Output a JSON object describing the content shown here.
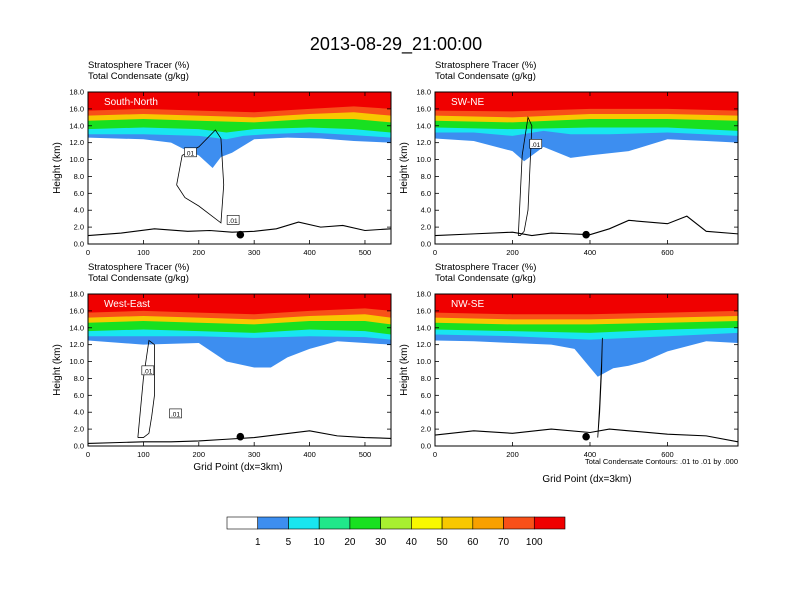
{
  "figure": {
    "title": "2013-08-29_21:00:00",
    "xlabel": "Grid Point (dx=3km)",
    "ylabel": "Height (km)",
    "footnote": "Total Condensate Contours: .01 to .01 by .000"
  },
  "colorbar": {
    "colors": [
      "#ffffff",
      "#3d8ef0",
      "#18e6f0",
      "#20e88a",
      "#18e020",
      "#a8f030",
      "#f8f800",
      "#f8c800",
      "#f8a000",
      "#f85018",
      "#f00000"
    ],
    "labels": [
      "1",
      "5",
      "10",
      "20",
      "30",
      "40",
      "50",
      "60",
      "70",
      "100"
    ]
  },
  "chart_data": [
    {
      "type": "contour",
      "panel": "South-North",
      "title_lines": [
        "Stratosphere Tracer   (%)",
        "Total Condensate   (g/kg)"
      ],
      "xlim": [
        0,
        547
      ],
      "ylim": [
        0,
        18
      ],
      "xticks": [
        0,
        100,
        200,
        300,
        400,
        500
      ],
      "yticks": [
        "0.0",
        "2.0",
        "4.0",
        "6.0",
        "8.0",
        "10.0",
        "12.0",
        "14.0",
        "16.0",
        "18.0"
      ],
      "series": [
        {
          "name": "Tracer 1%",
          "color": "#3d8ef0",
          "x": [
            0,
            100,
            150,
            180,
            200,
            225,
            240,
            260,
            300,
            360,
            420,
            480,
            547
          ],
          "y": [
            12.6,
            12.4,
            12.0,
            11.0,
            10.5,
            9.0,
            10.3,
            10.8,
            12.4,
            12.6,
            12.5,
            12.2,
            12.0
          ]
        },
        {
          "name": "Tracer 10%",
          "color": "#18e6f0",
          "x": [
            0,
            100,
            200,
            250,
            280,
            320,
            400,
            480,
            547
          ],
          "y": [
            13.0,
            13.0,
            12.8,
            12.4,
            12.8,
            13.0,
            13.2,
            12.9,
            12.6
          ]
        },
        {
          "name": "Tracer 30%",
          "color": "#18e020",
          "x": [
            0,
            100,
            200,
            250,
            300,
            400,
            480,
            547
          ],
          "y": [
            13.6,
            13.8,
            13.6,
            13.2,
            13.6,
            13.8,
            13.6,
            13.2
          ]
        },
        {
          "name": "Tracer 60%",
          "color": "#f8c800",
          "x": [
            0,
            100,
            200,
            300,
            400,
            480,
            547
          ],
          "y": [
            14.6,
            14.8,
            14.6,
            14.4,
            14.8,
            14.8,
            14.4
          ]
        },
        {
          "name": "Tracer 70%",
          "color": "#f85018",
          "x": [
            0,
            100,
            200,
            300,
            400,
            480,
            547
          ],
          "y": [
            15.2,
            15.4,
            15.2,
            15.0,
            15.4,
            15.6,
            15.2
          ]
        },
        {
          "name": "Tracer 100%",
          "color": "#f00000",
          "x": [
            0,
            100,
            200,
            300,
            400,
            480,
            547
          ],
          "y": [
            15.8,
            16.0,
            15.8,
            15.6,
            16.0,
            16.3,
            16.0
          ]
        },
        {
          "name": "Terrain",
          "color": "#000000",
          "x": [
            0,
            60,
            120,
            180,
            220,
            260,
            300,
            340,
            380,
            420,
            460,
            500,
            547
          ],
          "y": [
            1.0,
            1.3,
            1.8,
            1.5,
            1.6,
            1.4,
            1.5,
            1.8,
            2.6,
            2.0,
            2.2,
            1.6,
            1.8
          ]
        },
        {
          "name": "Condensate 0.01",
          "color": "#000000",
          "x": [
            160,
            170,
            200,
            230,
            240,
            245,
            240,
            220,
            200,
            175,
            160
          ],
          "y": [
            7.0,
            10.5,
            11.5,
            13.5,
            12.5,
            7.0,
            2.5,
            3.5,
            4.5,
            5.5,
            7.0
          ]
        }
      ],
      "labels": [
        {
          "text": "01",
          "x": 185,
          "y": 10.8
        },
        {
          "text": ".01",
          "x": 262,
          "y": 2.8
        }
      ],
      "marker": {
        "x": 275,
        "y": 1.1
      }
    },
    {
      "type": "contour",
      "panel": "SW-NE",
      "title_lines": [
        "Stratosphere Tracer   (%)",
        "Total Condensate   (g/kg)"
      ],
      "xlim": [
        0,
        782
      ],
      "ylim": [
        0,
        18
      ],
      "xticks": [
        0,
        200,
        400,
        600
      ],
      "yticks": [
        "0.0",
        "2.0",
        "4.0",
        "6.0",
        "8.0",
        "10.0",
        "12.0",
        "14.0",
        "16.0",
        "18.0"
      ],
      "series": [
        {
          "name": "Tracer 1%",
          "color": "#3d8ef0",
          "x": [
            0,
            100,
            200,
            230,
            280,
            350,
            400,
            500,
            600,
            700,
            782
          ],
          "y": [
            12.5,
            12.2,
            11.0,
            9.8,
            11.5,
            10.2,
            10.5,
            11.0,
            12.4,
            12.2,
            12.0
          ]
        },
        {
          "name": "Tracer 10%",
          "color": "#18e6f0",
          "x": [
            0,
            100,
            200,
            280,
            350,
            450,
            600,
            782
          ],
          "y": [
            13.2,
            13.2,
            12.8,
            13.4,
            13.0,
            13.0,
            13.2,
            12.8
          ]
        },
        {
          "name": "Tracer 30%",
          "color": "#18e020",
          "x": [
            0,
            200,
            400,
            600,
            782
          ],
          "y": [
            13.8,
            13.6,
            13.8,
            13.8,
            13.4
          ]
        },
        {
          "name": "Tracer 60%",
          "color": "#f8c800",
          "x": [
            0,
            200,
            400,
            600,
            782
          ],
          "y": [
            14.6,
            14.4,
            14.8,
            14.8,
            14.6
          ]
        },
        {
          "name": "Tracer 70%",
          "color": "#f85018",
          "x": [
            0,
            200,
            400,
            600,
            782
          ],
          "y": [
            15.2,
            15.0,
            15.4,
            15.4,
            15.2
          ]
        },
        {
          "name": "Tracer 100%",
          "color": "#f00000",
          "x": [
            0,
            200,
            400,
            600,
            782
          ],
          "y": [
            15.8,
            15.7,
            16.0,
            16.0,
            15.8
          ]
        },
        {
          "name": "Terrain",
          "color": "#000000",
          "x": [
            0,
            100,
            200,
            250,
            300,
            350,
            400,
            450,
            500,
            600,
            650,
            700,
            782
          ],
          "y": [
            1.0,
            1.2,
            1.4,
            1.0,
            1.3,
            1.2,
            1.1,
            1.8,
            2.8,
            2.4,
            3.3,
            1.5,
            1.2
          ]
        },
        {
          "name": "Condensate 0.01",
          "color": "#000000",
          "x": [
            215,
            225,
            240,
            250,
            245,
            240,
            230,
            220,
            215
          ],
          "y": [
            1.0,
            10.5,
            15.0,
            14.0,
            9.0,
            4.0,
            1.5,
            1.0,
            1.0
          ]
        }
      ],
      "labels": [
        {
          "text": ".01",
          "x": 260,
          "y": 11.8
        }
      ],
      "marker": {
        "x": 390,
        "y": 1.1
      }
    },
    {
      "type": "contour",
      "panel": "West-East",
      "title_lines": [
        "Stratosphere Tracer   (%)",
        "Total Condensate   (g/kg)"
      ],
      "xlim": [
        0,
        547
      ],
      "ylim": [
        0,
        18
      ],
      "xticks": [
        0,
        100,
        200,
        300,
        400,
        500
      ],
      "yticks": [
        "0.0",
        "2.0",
        "4.0",
        "6.0",
        "8.0",
        "10.0",
        "12.0",
        "14.0",
        "16.0",
        "18.0"
      ],
      "series": [
        {
          "name": "Tracer 1%",
          "color": "#3d8ef0",
          "x": [
            0,
            100,
            200,
            250,
            300,
            330,
            360,
            400,
            450,
            500,
            547
          ],
          "y": [
            12.5,
            12.0,
            12.2,
            10.0,
            9.3,
            9.3,
            10.5,
            11.5,
            12.4,
            12.2,
            12.0
          ]
        },
        {
          "name": "Tracer 10%",
          "color": "#18e6f0",
          "x": [
            0,
            100,
            200,
            300,
            400,
            500,
            547
          ],
          "y": [
            13.0,
            13.0,
            13.0,
            12.8,
            13.0,
            12.9,
            12.6
          ]
        },
        {
          "name": "Tracer 30%",
          "color": "#18e020",
          "x": [
            0,
            100,
            200,
            300,
            400,
            500,
            547
          ],
          "y": [
            13.6,
            13.8,
            13.6,
            13.4,
            13.8,
            13.6,
            13.2
          ]
        },
        {
          "name": "Tracer 60%",
          "color": "#f8c800",
          "x": [
            0,
            100,
            200,
            300,
            400,
            500,
            547
          ],
          "y": [
            14.6,
            14.8,
            14.6,
            14.4,
            14.8,
            14.8,
            14.4
          ]
        },
        {
          "name": "Tracer 70%",
          "color": "#f85018",
          "x": [
            0,
            100,
            200,
            300,
            400,
            500,
            547
          ],
          "y": [
            15.2,
            15.4,
            15.2,
            15.0,
            15.4,
            15.6,
            15.2
          ]
        },
        {
          "name": "Tracer 100%",
          "color": "#f00000",
          "x": [
            0,
            100,
            200,
            300,
            400,
            500,
            547
          ],
          "y": [
            15.8,
            16.0,
            15.8,
            15.6,
            16.0,
            16.3,
            16.0
          ]
        },
        {
          "name": "Terrain",
          "color": "#000000",
          "x": [
            0,
            50,
            100,
            150,
            200,
            250,
            300,
            350,
            400,
            450,
            500,
            547
          ],
          "y": [
            0.3,
            0.4,
            0.5,
            0.5,
            0.6,
            0.8,
            1.0,
            1.4,
            1.8,
            1.2,
            1.0,
            0.9
          ]
        },
        {
          "name": "Condensate 0.01",
          "color": "#000000",
          "x": [
            90,
            100,
            110,
            120,
            120,
            115,
            110,
            100,
            90
          ],
          "y": [
            1.0,
            8.0,
            12.5,
            12.0,
            6.0,
            3.5,
            1.5,
            1.0,
            1.0
          ]
        }
      ],
      "labels": [
        {
          "text": ".01",
          "x": 108,
          "y": 8.9
        },
        {
          "text": ".01",
          "x": 158,
          "y": 3.8
        }
      ],
      "marker": {
        "x": 275,
        "y": 1.1
      }
    },
    {
      "type": "contour",
      "panel": "NW-SE",
      "title_lines": [
        "Stratosphere Tracer   (%)",
        "Total Condensate   (g/kg)"
      ],
      "xlim": [
        0,
        782
      ],
      "ylim": [
        0,
        18
      ],
      "xticks": [
        0,
        200,
        400,
        600
      ],
      "yticks": [
        "0.0",
        "2.0",
        "4.0",
        "6.0",
        "8.0",
        "10.0",
        "12.0",
        "14.0",
        "16.0",
        "18.0"
      ],
      "series": [
        {
          "name": "Tracer 1%",
          "color": "#3d8ef0",
          "x": [
            0,
            100,
            200,
            300,
            360,
            400,
            420,
            460,
            500,
            540,
            600,
            700,
            782
          ],
          "y": [
            12.5,
            12.4,
            12.2,
            12.0,
            11.5,
            9.3,
            8.2,
            9.2,
            9.5,
            10.0,
            11.2,
            12.4,
            12.2
          ]
        },
        {
          "name": "Tracer 10%",
          "color": "#18e6f0",
          "x": [
            0,
            200,
            400,
            600,
            782
          ],
          "y": [
            13.2,
            13.0,
            12.6,
            13.0,
            13.4
          ]
        },
        {
          "name": "Tracer 30%",
          "color": "#18e020",
          "x": [
            0,
            200,
            400,
            600,
            782
          ],
          "y": [
            13.8,
            13.6,
            13.4,
            13.8,
            14.0
          ]
        },
        {
          "name": "Tracer 60%",
          "color": "#f8c800",
          "x": [
            0,
            200,
            400,
            600,
            782
          ],
          "y": [
            14.6,
            14.4,
            14.4,
            14.6,
            14.8
          ]
        },
        {
          "name": "Tracer 70%",
          "color": "#f85018",
          "x": [
            0,
            200,
            400,
            600,
            782
          ],
          "y": [
            15.2,
            15.0,
            15.0,
            15.2,
            15.4
          ]
        },
        {
          "name": "Tracer 100%",
          "color": "#f00000",
          "x": [
            0,
            200,
            400,
            600,
            782
          ],
          "y": [
            15.8,
            15.6,
            15.6,
            15.8,
            16.0
          ]
        },
        {
          "name": "Terrain",
          "color": "#000000",
          "x": [
            0,
            100,
            200,
            300,
            400,
            450,
            500,
            600,
            700,
            782
          ],
          "y": [
            1.3,
            1.8,
            1.5,
            2.0,
            1.6,
            2.0,
            1.8,
            1.4,
            1.2,
            0.5
          ]
        },
        {
          "name": "Condensate 0.01",
          "color": "#000000",
          "x": [
            420,
            425,
            430,
            432,
            430,
            425,
            420
          ],
          "y": [
            1.0,
            4.0,
            9.0,
            12.8,
            10.0,
            5.0,
            1.0
          ]
        }
      ],
      "labels": [],
      "marker": {
        "x": 390,
        "y": 1.1
      }
    }
  ]
}
